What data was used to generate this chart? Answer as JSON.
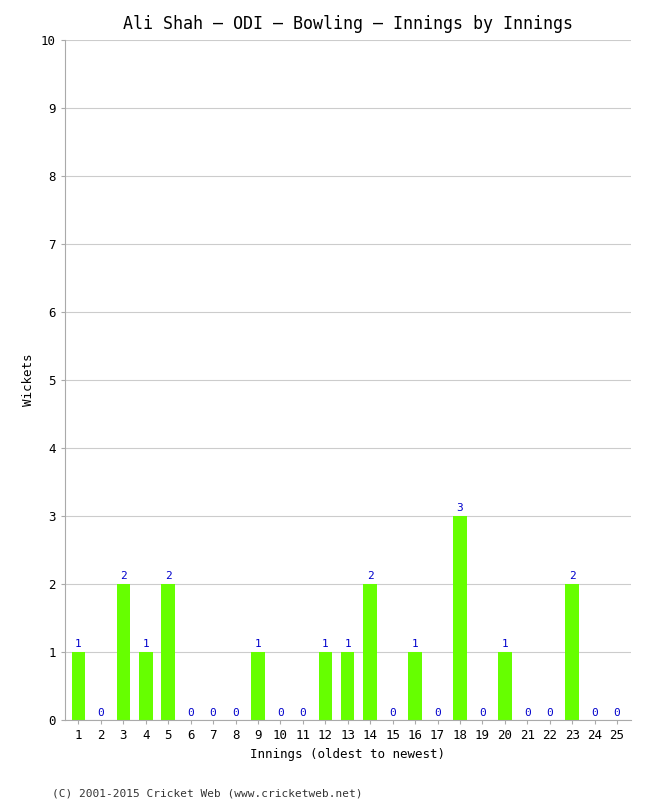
{
  "title": "Ali Shah – ODI – Bowling – Innings by Innings",
  "xlabel": "Innings (oldest to newest)",
  "ylabel": "Wickets",
  "categories": [
    1,
    2,
    3,
    4,
    5,
    6,
    7,
    8,
    9,
    10,
    11,
    12,
    13,
    14,
    15,
    16,
    17,
    18,
    19,
    20,
    21,
    22,
    23,
    24,
    25
  ],
  "values": [
    1,
    0,
    2,
    1,
    2,
    0,
    0,
    0,
    1,
    0,
    0,
    1,
    1,
    2,
    0,
    1,
    0,
    3,
    0,
    1,
    0,
    0,
    2,
    0,
    0
  ],
  "bar_color": "#66ff00",
  "label_color": "#0000cc",
  "background_color": "#ffffff",
  "grid_color": "#cccccc",
  "ylim": [
    0,
    10
  ],
  "yticks": [
    0,
    1,
    2,
    3,
    4,
    5,
    6,
    7,
    8,
    9,
    10
  ],
  "title_fontsize": 12,
  "axis_label_fontsize": 9,
  "tick_fontsize": 9,
  "bar_label_fontsize": 8,
  "footer_text": "(C) 2001-2015 Cricket Web (www.cricketweb.net)",
  "footer_fontsize": 8
}
